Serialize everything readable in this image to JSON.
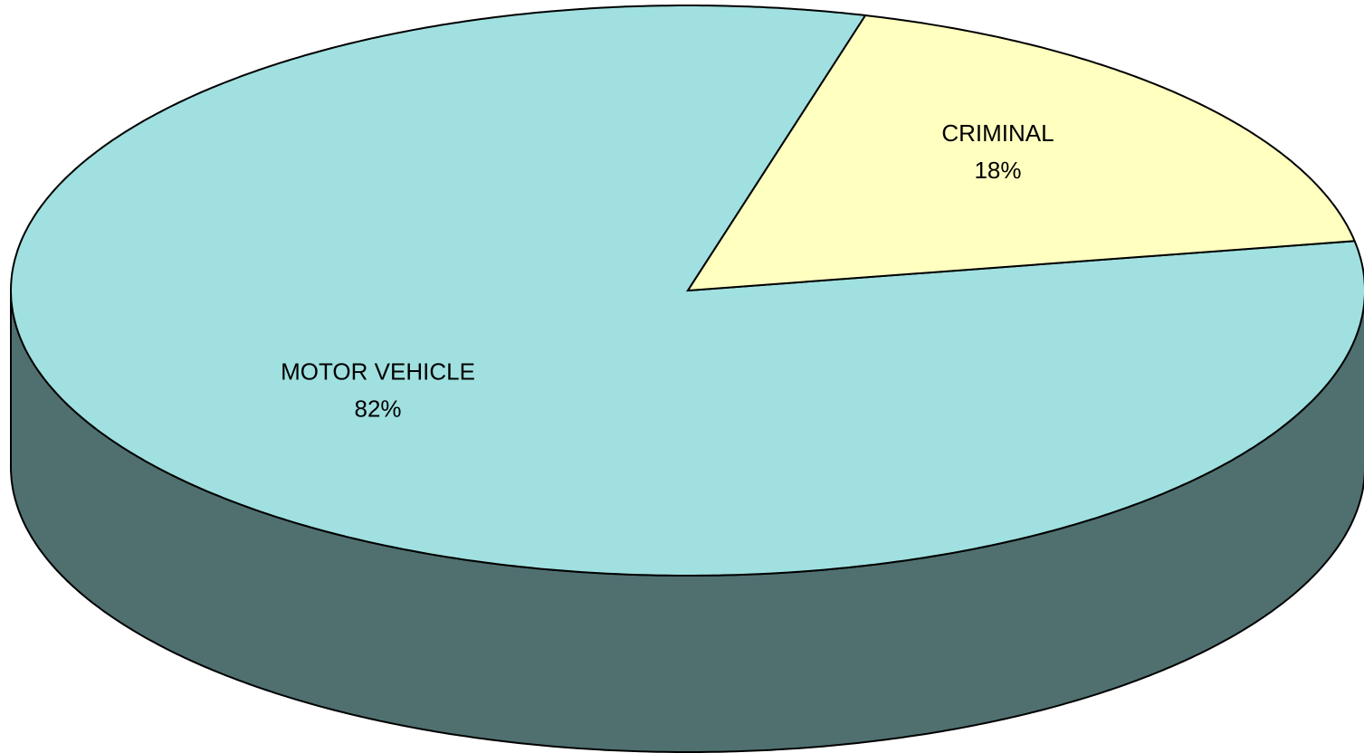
{
  "chart_data": {
    "type": "pie",
    "categories": [
      "MOTOR VEHICLE",
      "CRIMINAL"
    ],
    "values": [
      82,
      18
    ],
    "value_labels": [
      "82%",
      "18%"
    ],
    "colors": [
      "#a0e0e0",
      "#ffffc0"
    ],
    "side_colors": [
      "#507070",
      "#808060"
    ]
  }
}
